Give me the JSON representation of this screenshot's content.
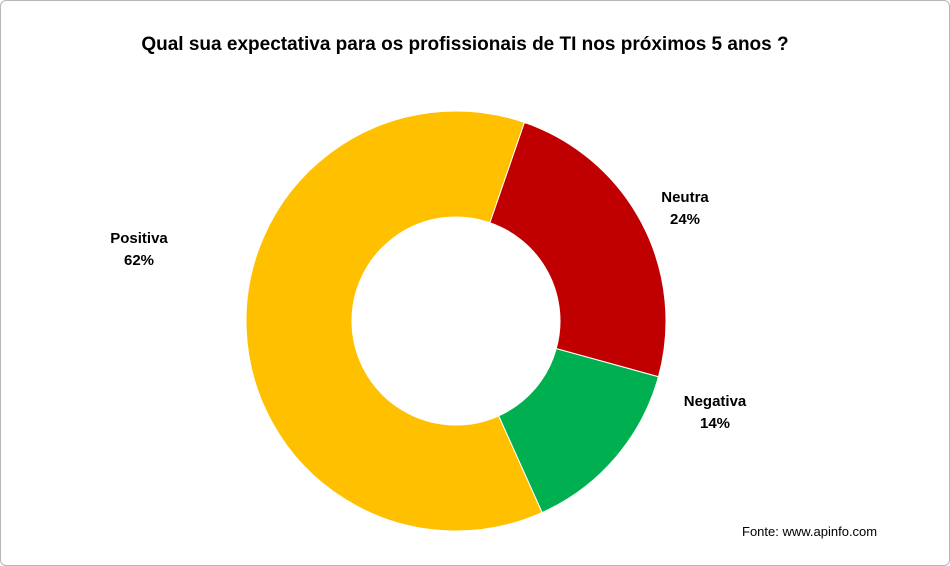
{
  "chart_data": {
    "type": "pie",
    "title": "Qual sua expectativa para os profissionais de TI nos próximos 5 anos ?",
    "donut": true,
    "slices": [
      {
        "name": "Neutra",
        "value": 24,
        "label": "24%",
        "color": "#C00000"
      },
      {
        "name": "Negativa",
        "value": 14,
        "label": "14%",
        "color": "#00B050"
      },
      {
        "name": "Positiva",
        "value": 62,
        "label": "62%",
        "color": "#FFC000"
      }
    ],
    "source": "Fonte: www.apinfo.com"
  }
}
